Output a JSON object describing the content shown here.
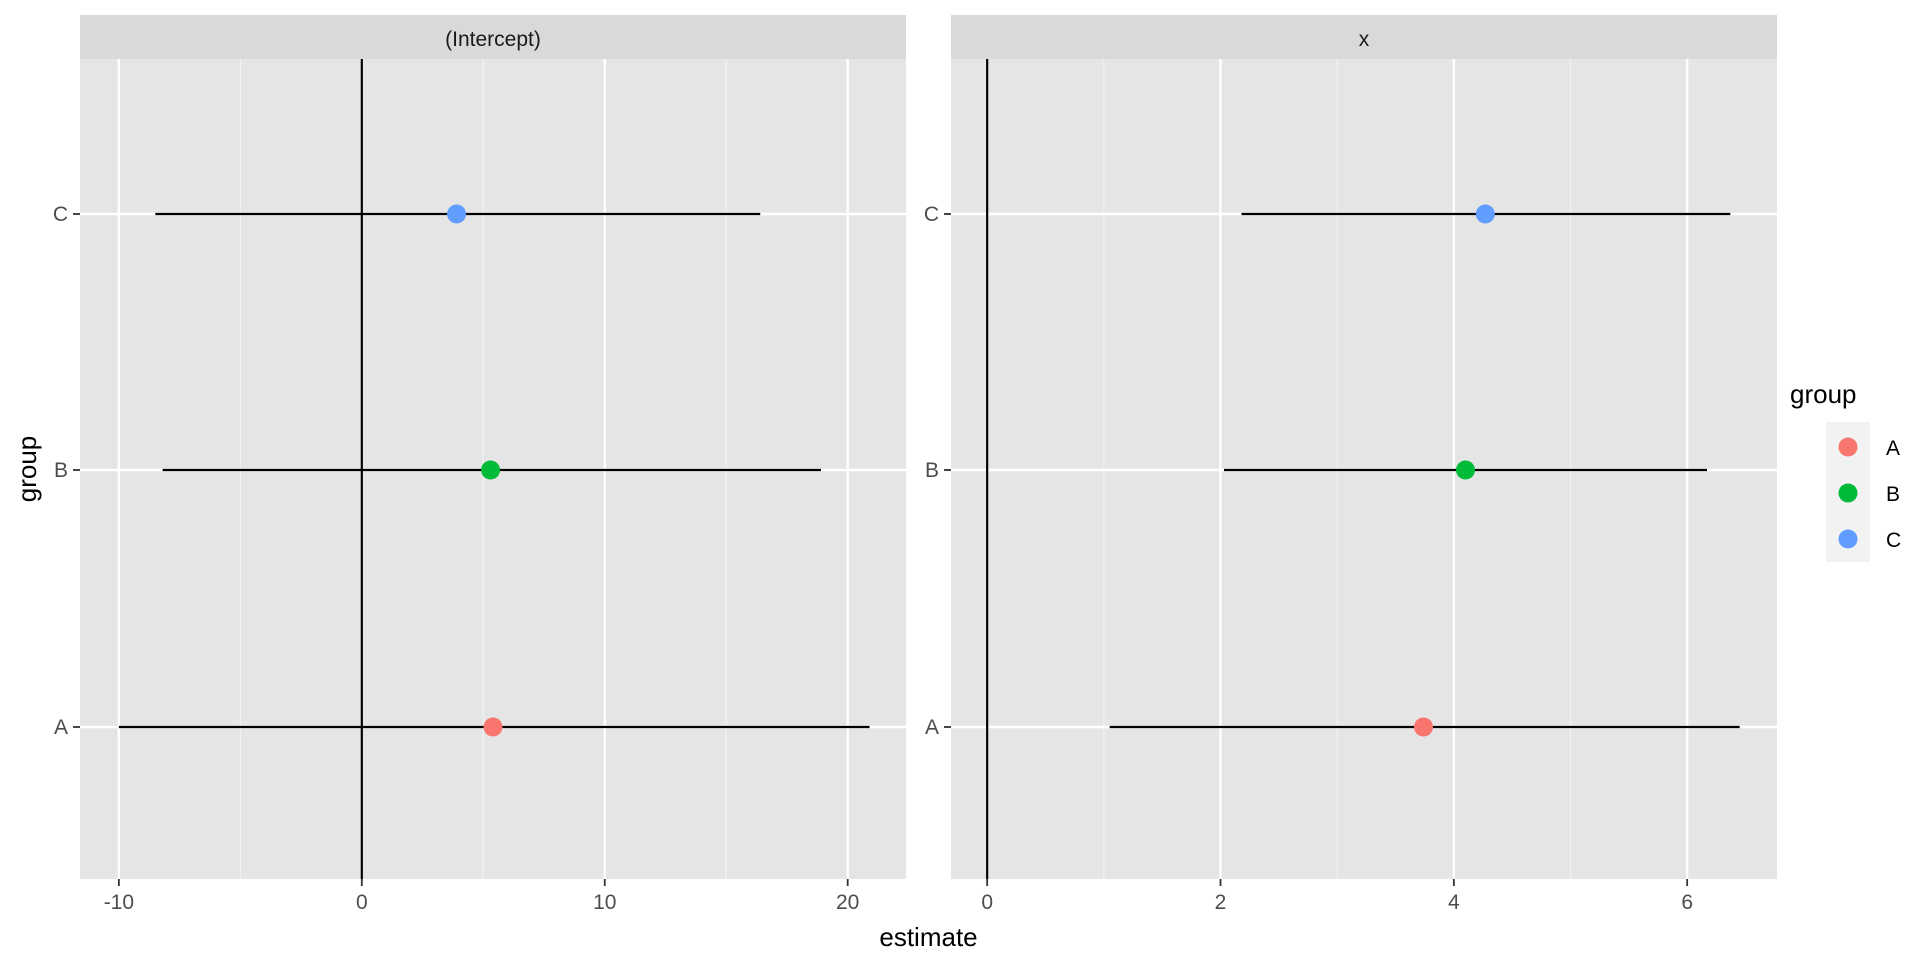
{
  "chart_data": {
    "type": "scatter",
    "subtype": "coefficient plot with horizontal interval lines, faceted",
    "xlabel": "estimate",
    "ylabel": "group",
    "categories": [
      "A",
      "B",
      "C"
    ],
    "legend": {
      "title": "group",
      "position": "right",
      "entries": [
        {
          "label": "A",
          "color": "#F8766D"
        },
        {
          "label": "B",
          "color": "#00BA38"
        },
        {
          "label": "C",
          "color": "#619CFF"
        }
      ]
    },
    "panel_background": "#E5E5E5",
    "strip_background": "#D9D9D9",
    "grid": true,
    "reference_line_x": 0,
    "facets": [
      {
        "label": "(Intercept)",
        "xlim": [
          -11.6,
          22.4
        ],
        "x_ticks": [
          -10,
          0,
          10,
          20
        ],
        "x_tick_labels": [
          "-10",
          "0",
          "10",
          "20"
        ],
        "points": [
          {
            "group": "A",
            "estimate": 5.4,
            "lower": -10.0,
            "upper": 20.9
          },
          {
            "group": "B",
            "estimate": 5.3,
            "lower": -8.2,
            "upper": 18.9
          },
          {
            "group": "C",
            "estimate": 3.9,
            "lower": -8.5,
            "upper": 16.4
          }
        ]
      },
      {
        "label": "x",
        "xlim": [
          -0.31,
          6.77
        ],
        "x_ticks": [
          0,
          2,
          4,
          6
        ],
        "x_tick_labels": [
          "0",
          "2",
          "4",
          "6"
        ],
        "points": [
          {
            "group": "A",
            "estimate": 3.74,
            "lower": 1.05,
            "upper": 6.45
          },
          {
            "group": "B",
            "estimate": 4.1,
            "lower": 2.03,
            "upper": 6.17
          },
          {
            "group": "C",
            "estimate": 4.27,
            "lower": 2.18,
            "upper": 6.37
          }
        ]
      }
    ]
  }
}
